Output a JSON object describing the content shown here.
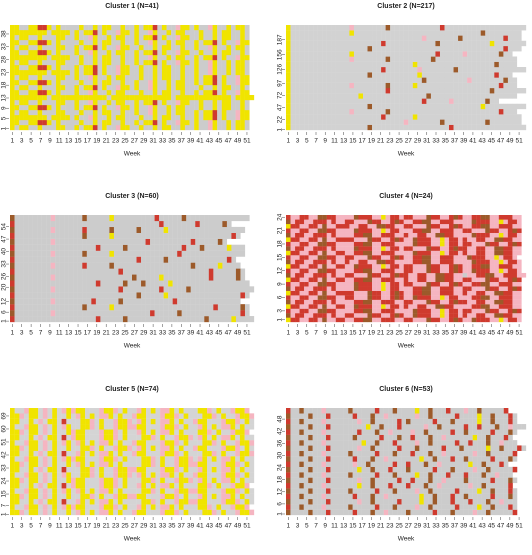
{
  "chart_data": [
    {
      "type": "heatmap",
      "title": "Cluster 1 (N=41)",
      "x_label": "Week",
      "colors": {
        "g": "#cccccc",
        "y": "#f0e400",
        "p": "#f5b5c1",
        "r": "#cf3a2e",
        "b": "#9c5a2a"
      },
      "xlim": [
        0.5,
        52.5
      ],
      "xticks": [
        1,
        3,
        5,
        7,
        9,
        11,
        13,
        15,
        17,
        19,
        21,
        23,
        25,
        27,
        29,
        31,
        33,
        35,
        37,
        39,
        41,
        43,
        45,
        47,
        49,
        51
      ],
      "ylim": [
        0.5,
        41.5
      ],
      "yticks": [
        1,
        5,
        9,
        13,
        18,
        23,
        28,
        33,
        38
      ],
      "rows": [
        "ygyyggygggyyggygyyrgyggpyyggyggygyyggyggyggpyggygyyg",
        "yyggyyrrygyggggyggygyyggyggygyyrgyggpyygyggpyggygyyg",
        "yyyyyyyygyyyygyggpyggygyygggyggygyyggyggygyyrgyggpyy",
        "ygyyggygggyygggyggygyyggyggyggpyggygyyggygyyrgyggpyy",
        "yyggyyrrygygggygyyrgyggpyygyggpyggygyygggyggygyyggyg",
        "ygyyggygggyyggyggpyggygyyggygyyrgyggpyyggyggygyyggyg",
        "yyyyyyyygyyyyyyyyyyyygyyyyyyyyyyyyygyyyyyyyyyyyygyyyy",
        "yyggyyrrygygggyggpyggygyygggyggygyyggyggygyyrgyggpyy",
        "ygyyggygggyyggygyyrgyggpyygyggpyggygyygggyggygyyggyg",
        "yyggyyrrygyggggyggygyyggyggyggpyggygyyggygyyrgyggpyy",
        "ygyyggygggyyggyggpyggygyygggyggygyyggyggygyyrgyggpyy",
        "yyyyyyyygyyyygygyyrgyggpyyggyggygyyggyggyggpyggygyyg",
        "yyggyyrrygygggygyyrgyggpyyggyggygyyggyggyggpyggygyyg",
        "ygyyggygggyygggyggygyyggyggygyyrgyggpyygyggpyggygyyg",
        "yyyyyyyygyyyyggyggygyyggyggyggpyggygyyggygyyrgyggpyy",
        "yyggyyrrygygggyggpyggygyyggygyyrgyggpyyggyggygyyggyg",
        "ygyyggygggyyggygyyrgyggpyyggyggygyyggyggyggpyggygyyg",
        "yyggyyrrygyggggyggygyyggyggyggpyggygyyggygyyrgyggpyy",
        "ygyyggygggyyggyggpyggygyyggygyyrgyggpyyggyggygyyggyg",
        "yyyyyyyygyyyygygyyrgyggpyygyggpyggygyygggyggygyyggyg",
        "yyggyyrrygyggggyggygyyggyggygyyrgyggpyygyggpyggygyyg"
      ]
    },
    {
      "type": "heatmap",
      "title": "Cluster 2 (N=217)",
      "x_label": "Week",
      "colors": {
        "g": "#d2d2d2",
        "y": "#f0e400",
        "p": "#f5b5c1",
        "r": "#cf3a2e",
        "b": "#9c5a2a"
      },
      "xlim": [
        0.5,
        52.5
      ],
      "xticks": [
        1,
        3,
        5,
        7,
        9,
        11,
        13,
        15,
        17,
        19,
        21,
        23,
        25,
        27,
        29,
        31,
        33,
        35,
        37,
        39,
        41,
        43,
        45,
        47,
        49,
        51
      ],
      "ylim": [
        0.5,
        217.5
      ],
      "yticks": [
        1,
        22,
        47,
        72,
        97,
        126,
        156,
        187
      ],
      "rows": [
        "ygggggggggggggggggbgggggggggggggggggrgggggggggggggggg",
        "ygggggggggggggggggggggggggpgggggggbgggggggggbggggggg",
        "yggggggggggggggggggggrggggggyggggggggggggggggggggggg",
        "ygggggggggggggpgggggggbggggggggggggggggggggggggrggg",
        "ygggggggggggggggggbggggggggggggggggggggggggyggggggggg",
        "ygggggggggggggggggggggggggggggrgggggpgggggggbgg",
        "ygggggggggggggggyggggggggggggggbggggggggggggggggggg",
        "ygggggggggggggggggggggrggggggggggggggggggggggbggggggg",
        "ygggggggggggggpgggggggbgggggyggggggggggggggggggrggg",
        "ygggggggggggggggggggggggggggggbgggggggggpgggggggbgg",
        "ygggggggggggggggggbggggggggggyggggggggggggggggrggg",
        "yggggggggggggggggggggrgggggggpgggggggbggggggggggggggg",
        "ygggggggggggggggggggggggggggygggggggggggggggggbgggg",
        "ygggggggggggggpgggggggbgggggggggbgggggggggggggggggg",
        "ygggggggggggggyggggggggggggggggggrgggggpgggggggbgg",
        "ygggggggggggggggggbgggggggggggggggggggggggggggggrggg",
        "yggggggggggggggggggggrgggggggggggbgggggggggggyggggggg",
        "ygggggggggggggggggggggggggggggpgggggggbgggggggggrggg",
        "ygggggggggggggyggggggggggggggggggggggggggggbgggggggg",
        "ygggggggggggggpgggggggbgggggggggggrgggggggggggggggggg"
      ]
    },
    {
      "type": "heatmap",
      "title": "Cluster 3 (N=60)",
      "x_label": "Week",
      "colors": {
        "g": "#cccccc",
        "y": "#f0e400",
        "p": "#f5b5c1",
        "r": "#cf3a2e",
        "b": "#9c5a2a"
      },
      "xlim": [
        0.5,
        52.5
      ],
      "xticks": [
        1,
        3,
        5,
        7,
        9,
        11,
        13,
        15,
        17,
        19,
        21,
        23,
        25,
        27,
        29,
        31,
        33,
        35,
        37,
        39,
        41,
        43,
        45,
        47,
        49,
        51
      ],
      "ylim": [
        0.5,
        60.5
      ],
      "yticks": [
        1,
        6,
        12,
        20,
        26,
        33,
        40,
        47,
        54
      ],
      "rows": [
        "rggggggggggggggggggrgggggbgggggggggggggggggbgggggygggg",
        "bggggggggpgggggggggggggggggggggrgggggbgggggggggggggrg",
        "rgggggggggggggggbgggggyggggggggggggggggggggggrgggggbg",
        "bggggggggpggggggggrgggggbgggggggggggrgggggggggggggg",
        "rgggggggggggggggggggggggggggbgggggyggggggggggggggggrg",
        "bggggggggpggggggggggggggrggggggggrgggggbgggggggggggggg",
        "rggggggggggggggggggrgggggbgggbgggggyggggggggggggggggg",
        "bggggggggpgggggggggggggggggbgggggyggggggggggrgggggbg",
        "rgggggggggggggggggggggggrgggggggggggggggggggrgggggbg",
        "bggggggggpggggggrgggggbgggggggggggggggggbgggggygggg",
        "rgggggggggggggggggggggggggggrgggggbgggggggggggggrg",
        "bggggggggpggggggbgggggyggggggggggggggrgggggggggggggg",
        "rggggggggggggggggggrgggggbggggggggggggrgggbgggggyggg",
        "bggggggggpggggggggggggggggggggrgggggggggrgggggbg",
        "rgggggggggggggggbgggggyggggggggggggggggggggggggggrg",
        "bggggggggpggggggrgggggbgggggbgggggyggggggggggggggggg",
        "rggggggggggggggggggggggggggggggggrgggggggrgggggbg",
        "bggggggggpggggggbgggggygggggggggrgggggbgggggggggggggg"
      ]
    },
    {
      "type": "heatmap",
      "title": "Cluster 4 (N=24)",
      "x_label": "Week",
      "colors": {
        "g": "#cccccc",
        "y": "#f0e400",
        "p": "#f5b5c1",
        "r": "#cf3a2e",
        "b": "#9c5a2a"
      },
      "xlim": [
        0.5,
        52.5
      ],
      "xticks": [
        1,
        3,
        5,
        7,
        9,
        11,
        13,
        15,
        17,
        19,
        21,
        23,
        25,
        27,
        29,
        31,
        33,
        35,
        37,
        39,
        41,
        43,
        45,
        47,
        49,
        51
      ],
      "ylim": [
        0.5,
        24.5
      ],
      "yticks": [
        1,
        3,
        6,
        9,
        12,
        15,
        18,
        21,
        24
      ],
      "rows": [
        "yrrpprrpbpprrpprrbbpprrrpprrpppbrrpprbrppbrrrppyprrp",
        "bprrpprrrprpprrpppbrrpprbrppbrrrppyprrprpprrppbbrrpp",
        "rpprrppbbrrpppprrbbpprrrppppbrrrppyprrprrpppbrrpprbr",
        "yrrpprrpbpprrppbrrrppyprrprpprrppbbrrpppprrbbpprrrpp",
        "bprrpprrrprpppprrbbpprrrpprrpppbrrpprbrrpprrppbbrrpp",
        "rpprrppbbrrpprrpppbrrpprbrppbrrrppyprrppprrbbpprrrpp",
        "yrrpprrpbpprrrrpppbrrpprbrpprrbbpprrrpprpprrppbbrrpp",
        "bprrpprrrprppppbrrrppyprrppprrbbpprrrpprrpppbrrpprbr",
        "rpprrppbbrrppppbrrrppyprrprrpppbrrpprbrpprrbbpprrrpp",
        "yrrpprrpbpprrpprrbbpprrrpprpprrppbbrrpprrpppbrrpprbr",
        "bprrpprrrprpprrpppbrrpprbrrpprrppbbrrppapprrbbpprrrpp",
        "rpprrppbbrrpppprrbbpprrrpprrpppbrrpprbrppbrrrppyprrp",
        "yrrpprrpbpprrppbrrrppyprrprrpppbrrpprbrpprrbbpprrrpp",
        "bprrpprrrprpprpprrppbbrrpppprrbbpprrrppppbrrrppyprrp",
        "rpprrppbbrrpprrpppbrrpprbrpprrbbpprrrpppbrrrppyprrp",
        "yrrpprrpbpprrpprrbbpprrrppppbrrrppyprrprpprrppbbrrpp",
        "bprrpprrrprppppbrrrppyprrprrpppbrrpprbrrpprrppbbrrpp",
        "rpprrppbbrrpppprrbbpprrrppppbrrrppyprrprrpppbrrpprbr",
        "yrrpprrpbpprrrrpppbrrpprbrppbrrrppyprrprpprrppbbrrpp",
        "bprrpprrrprpppprrbbpprrrpprpprrppbbrrppppbrrrppyprrp",
        "rpprrppbbrrppppbrrrppyprrppprrbbpprrrpprrpppbrrpprbr",
        "yrrpprrpbpprrrpprrppbbrrpprrpppbrrpprbrpprrbbpprrrpp",
        "bprrpprrrprpprrpppbrrpprbrpprrbbpprrrppppbrrrppyprrp",
        "rpprrppbbrrppppbrrrppyprrprrpppbrrpprbrpprrbbpprrrpp"
      ]
    },
    {
      "type": "heatmap",
      "title": "Cluster 5 (N=74)",
      "x_label": "Week",
      "colors": {
        "g": "#d4d4d4",
        "y": "#f0e400",
        "p": "#f5b5c1",
        "r": "#cf3a2e",
        "b": "#9c5a2a"
      },
      "xlim": [
        0.5,
        52.5
      ],
      "xticks": [
        1,
        3,
        5,
        7,
        9,
        11,
        13,
        15,
        17,
        19,
        21,
        23,
        25,
        27,
        29,
        31,
        33,
        35,
        37,
        39,
        41,
        43,
        45,
        47,
        49,
        51
      ],
      "ylim": [
        0.5,
        74.5
      ],
      "yticks": [
        1,
        7,
        15,
        24,
        33,
        42,
        51,
        60,
        69
      ],
      "rows": [
        "yypgyygpgyggygpygygppygyggpyygggpyypgygggyypgyggpyyp",
        "yggpyygpgygpypyygggpyypgyggpygygppygygggyypgyggpyyp",
        "yyggygpgyygrggpygygppygyggggyypgyggpyyppyygggpyypgyg",
        "yypgyygpgyggyggyypgyggpyyppyygggpyypgyggpygygppygygg",
        "yggpyygpgygpygpygygppygyggggyypgyggpyyppyygggpyypgyg",
        "yyggygpgyygrgpyygggpyypgyggpygygppygygggyypgyggpyyp",
        "yypgyygpgyggypyygggpyypgygggyypgyggpyypgpygygppygygg",
        "yggpyygpgygpyggyypgyggpyypgpygygppygyggpyygggpyypgyg",
        "yyggygpgyygrgggyypgyggpyyppyygggpyypgyggpygygppygygg",
        "yypgyygpgyggygpygygppygyggggyypgyggpyyppyygggpyypgyg",
        "yggpyygpgygpypyygggpyypgygggyypgyggpyypgpygygppygygg",
        "yyggygpgyygrggpygygppygyggpyygggpyypgygggyypgyggpyyp",
        "yypgyygpgyggyggyypgyggpyypgpygygppygyggpyygggpyypgyg",
        "yggpyygpgygpygpygygppygyggpyygggpyypgygggyypgyggpyyp",
        "yyggygpgyygrgpyygggpyypgygggyypgyggpyypgpygygppygygg",
        "yypgyygpgyggypyygggpyypgyggpygygppygygggyypgyggpyyp",
        "yggpyygpgygpyggyypgyggpyyppyygggpyypgyggpygygppygygg",
        "yyggygpgyygrgggyypgyggpyypgpygygppygyggpyygggpyypgyg",
        "yypgyygpgyggygpygygppygyggpyygggpyypgygggyypgyggpyyp",
        "yggpyygpgygpypyygggpyypgyggpygygppygygggyypgyggpyyp"
      ]
    },
    {
      "type": "heatmap",
      "title": "Cluster 6 (N=53)",
      "x_label": "Week",
      "colors": {
        "g": "#cccccc",
        "y": "#f0e400",
        "p": "#f5b5c1",
        "r": "#cf3a2e",
        "b": "#9c5a2a"
      },
      "xlim": [
        0.5,
        52.5
      ],
      "xticks": [
        1,
        3,
        5,
        7,
        9,
        11,
        13,
        15,
        17,
        19,
        21,
        23,
        25,
        27,
        29,
        31,
        33,
        35,
        37,
        39,
        41,
        43,
        45,
        47,
        49,
        51
      ],
      "ylim": [
        0.5,
        53.5
      ],
      "yticks": [
        1,
        6,
        12,
        18,
        24,
        30,
        36,
        42,
        48
      ],
      "rows": [
        "bggggbgggrgggggrgggbggpggggbgggggrgggbggggpggbgggggr",
        "rggbggggpgggggbgggggrgggbggggpggbgggggrggggyggbgggrg",
        "bggggbgggrggggggpggbgggggrggggyggbgggrgggrgggbggpggg",
        "rggbggggpggggggrgggbggpgggggggyggbgggrggbgggggrgggbg",
        "bggggbgggrggggbgggggrgggbggggpggbgggggrggggyggbgggrg",
        "rggbggggpgggggggyggbgggrgggrgggbggpggggggpggbgggggr",
        "bggggbgggrggggggpggbgggggrggrgggbggpggggbgggggrgggbg",
        "rggbggggpgggggbgggggrgggbggggyggbgggrgggrgggbggpggg",
        "bggggbgggrggggggyggbgggrgggbgggggrgggbggggpggbgggggr",
        "rggbggggpggggggpggbgggggrggrgggbggpggggggyggbgggrg",
        "bggggbgggrgggggrgggbggpgggggggyggbgggrggbgggggrgggbg",
        "rggbggggpgggggbgggggrgggbgggrgggbggpggggggpggbgggggr",
        "bggggbgggrggggggpggbgggggrgggbgggggrgggbgggggyggbgggrg",
        "rggbggggpggggggggyggbgggrggggpggbgggggrggrgggbggpggg",
        "bggggbgggrgggggbgggggrgggbggrgggbggpggggggyggbgggrg",
        "rggbggggpgggggggrgggbggpggggpggbgggggrggbgggggrgggbg",
        "bggggbgggrggggggggyggbgggrgggggpggbgggggrggrgggbggpggg",
        "rggbggggpgggggggpggbgggggrgbgggggrgggbgggggyggbgggrg",
        "bggggbgggrgggggrgggbggpggggggpggbgggggrggggyggbgggrg",
        "rggbggggpgggggbgggggrgggbggggyggbgggrgggpggbgggggr"
      ]
    }
  ]
}
